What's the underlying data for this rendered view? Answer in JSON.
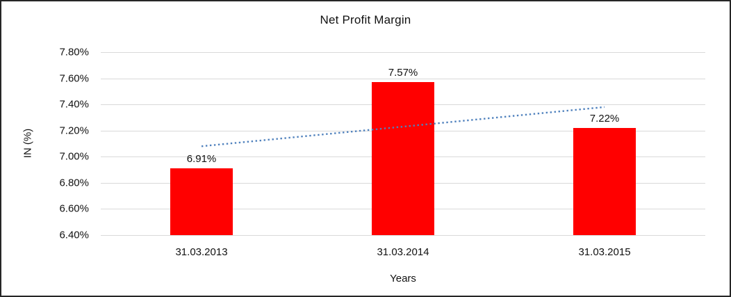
{
  "chart_data": {
    "type": "bar",
    "title": "Net Profit Margin",
    "xlabel": "Years",
    "ylabel": "IN (%)",
    "categories": [
      "31.03.2013",
      "31.03.2014",
      "31.03.2015"
    ],
    "values": [
      6.91,
      7.57,
      7.22
    ],
    "data_labels": [
      "6.91%",
      "7.57%",
      "7.22%"
    ],
    "ylim": [
      6.4,
      7.8
    ],
    "ytick_step": 0.2,
    "ytick_labels": [
      "7.80%",
      "7.60%",
      "7.40%",
      "7.20%",
      "7.00%",
      "6.80%",
      "6.60%",
      "6.40%"
    ],
    "grid": true,
    "legend": "none",
    "bar_color": "#ff0000",
    "gridline_color": "#d9d9d9",
    "text_color": "#111111",
    "trendline": {
      "style": "dotted",
      "color": "#4f81bd",
      "start_value": 7.08,
      "end_value": 7.38
    }
  }
}
